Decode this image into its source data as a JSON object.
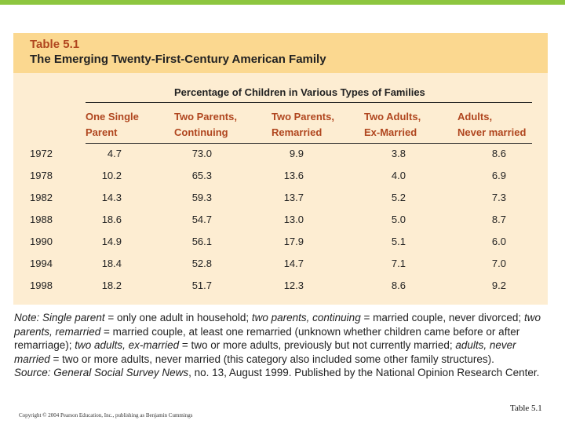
{
  "title": {
    "label": "Table 5.1",
    "heading": "The Emerging Twenty-First-Century American Family"
  },
  "table": {
    "spanner": "Percentage of Children in Various Types of Families",
    "columns": [
      [
        "One Single",
        "Parent"
      ],
      [
        "Two Parents,",
        "Continuing"
      ],
      [
        "Two Parents,",
        "Remarried"
      ],
      [
        "Two Adults,",
        "Ex-Married"
      ],
      [
        "Adults,",
        "Never married"
      ]
    ],
    "rows": [
      {
        "year": "1972",
        "values": [
          "4.7",
          "73.0",
          "9.9",
          "3.8",
          "8.6"
        ]
      },
      {
        "year": "1978",
        "values": [
          "10.2",
          "65.3",
          "13.6",
          "4.0",
          "6.9"
        ]
      },
      {
        "year": "1982",
        "values": [
          "14.3",
          "59.3",
          "13.7",
          "5.2",
          "7.3"
        ]
      },
      {
        "year": "1988",
        "values": [
          "18.6",
          "54.7",
          "13.0",
          "5.0",
          "8.7"
        ]
      },
      {
        "year": "1990",
        "values": [
          "14.9",
          "56.1",
          "17.9",
          "5.1",
          "6.0"
        ]
      },
      {
        "year": "1994",
        "values": [
          "18.4",
          "52.8",
          "14.7",
          "7.1",
          "7.0"
        ]
      },
      {
        "year": "1998",
        "values": [
          "18.2",
          "51.7",
          "12.3",
          "8.6",
          "9.2"
        ]
      }
    ]
  },
  "note": {
    "prefix": "Note: Single parent",
    "t1": " = only one adult in household; ",
    "i2": "two parents, continuing",
    "t2": " = married couple, never divorced; ",
    "i3": "two parents, remarried",
    "t3": " = married couple, at least one remarried (unknown whether children came before or after remarriage); ",
    "i4": "two adults, ex-married",
    "t4": " = two or more adults, previously but not currently married; ",
    "i5": "adults, never married",
    "t5": " = two or more adults, never married (this category also included some other family structures).",
    "source_label": "Source: General Social Survey News",
    "source_text": ", no. 13, August 1999. Published by the National Opinion Research Center."
  },
  "footer": {
    "copyright": "Copyright © 2004 Pearson Education, Inc., publishing as Benjamin Cummings",
    "slide_caption": "Table 5.1"
  }
}
